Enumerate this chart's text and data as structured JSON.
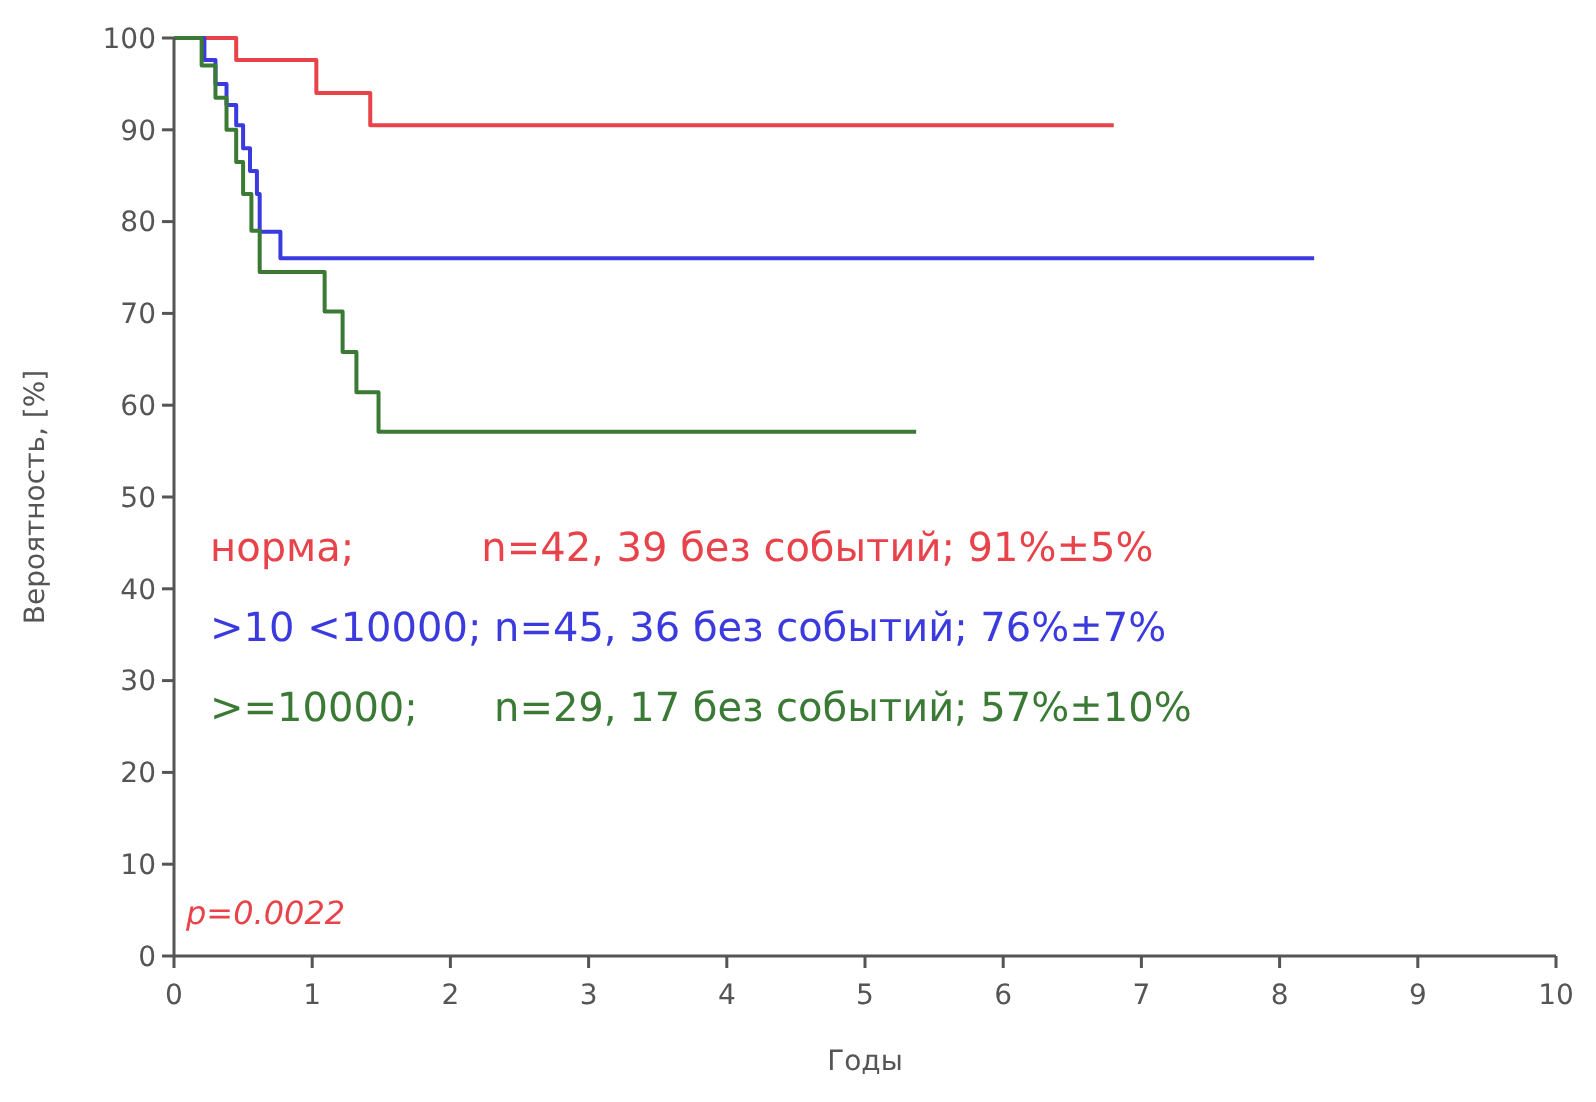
{
  "chart_data": {
    "type": "step",
    "xlabel": "Годы",
    "ylabel": "Вероятность, [%]",
    "xlim": [
      0,
      10
    ],
    "ylim": [
      0,
      100
    ],
    "xticks": [
      0,
      1,
      2,
      3,
      4,
      5,
      6,
      7,
      8,
      9,
      10
    ],
    "yticks": [
      0,
      10,
      20,
      30,
      40,
      50,
      60,
      70,
      80,
      90,
      100
    ],
    "grid": false,
    "series": [
      {
        "color": "#e8434a",
        "x": [
          0,
          0.45,
          1.03,
          1.42,
          6.8
        ],
        "values": [
          100,
          97.6,
          94,
          90.5,
          90.5
        ]
      },
      {
        "color": "#3a3adf",
        "x": [
          0,
          0.22,
          0.3,
          0.38,
          0.45,
          0.5,
          0.55,
          0.6,
          0.62,
          0.77,
          8.25
        ],
        "values": [
          100,
          97.6,
          95,
          92.7,
          90.5,
          88,
          85.5,
          83,
          78.9,
          76,
          76
        ]
      },
      {
        "color": "#3a7a35",
        "x": [
          0,
          0.2,
          0.3,
          0.38,
          0.45,
          0.5,
          0.56,
          0.62,
          1.09,
          1.22,
          1.32,
          1.48,
          5.37
        ],
        "values": [
          100,
          97,
          93.5,
          90,
          86.5,
          83,
          79,
          74.5,
          70.2,
          65.8,
          61.4,
          57.1,
          57.1
        ]
      }
    ],
    "annotations": [
      "норма;          n=42, 39 без событий; 91%±5%",
      ">10 <10000; n=45, 36 без событий; 76%±7%",
      ">=10000;      n=29, 17 без событий; 57%±10%",
      "p=0.0022"
    ]
  }
}
